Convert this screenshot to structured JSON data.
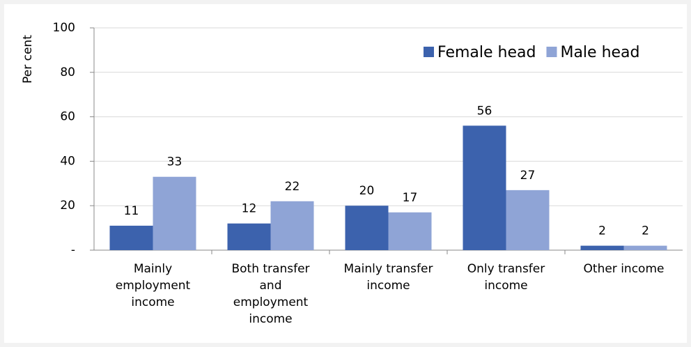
{
  "chart_data": {
    "type": "bar",
    "ylabel": "Per cent",
    "categories": [
      "Mainly employment income",
      "Both transfer and employment income",
      "Mainly transfer income",
      "Only transfer income",
      "Other income"
    ],
    "series": [
      {
        "name": "Female head",
        "color": "#3c62ad",
        "values": [
          11,
          12,
          20,
          56,
          2
        ]
      },
      {
        "name": "Male head",
        "color": "#8fa4d6",
        "values": [
          33,
          22,
          17,
          27,
          2
        ]
      }
    ],
    "ylim": [
      0,
      100
    ],
    "yticks": [
      {
        "value": 0,
        "label": "-"
      },
      20,
      40,
      60,
      80,
      100
    ],
    "grid": true,
    "legend": "upper right"
  }
}
